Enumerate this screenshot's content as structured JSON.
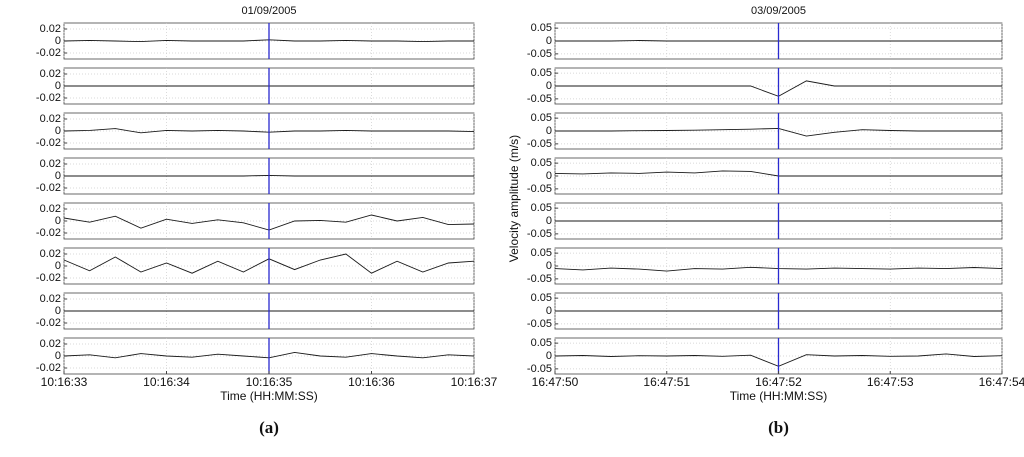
{
  "chart_data": [
    {
      "type": "line",
      "title": "01/09/2005",
      "xlabel": "Time (HH:MM:SS)",
      "panel_label": "(a)",
      "xlim": [
        0,
        4
      ],
      "xticks": [
        {
          "value": 0,
          "label": "10:16:33"
        },
        {
          "value": 1,
          "label": "10:16:34"
        },
        {
          "value": 2,
          "label": "10:16:35"
        },
        {
          "value": 3,
          "label": "10:16:36"
        },
        {
          "value": 4,
          "label": "10:16:37"
        }
      ],
      "x": [
        0,
        0.25,
        0.5,
        0.75,
        1,
        1.25,
        1.5,
        1.75,
        2,
        2.25,
        2.5,
        2.75,
        3,
        3.25,
        3.5,
        3.75,
        4
      ],
      "ylim": [
        -0.03,
        0.03
      ],
      "yticks": [
        -0.02,
        0,
        0.02
      ],
      "color": "#1a1a1a",
      "marker": 2,
      "marker_color": "#2a2ad0",
      "grid": true,
      "subplots": [
        {
          "values": [
            0,
            0.001,
            0,
            -0.001,
            0.001,
            0,
            0,
            0,
            0.002,
            0,
            0,
            0.001,
            0,
            0,
            -0.001,
            0,
            0
          ]
        },
        {
          "values": [
            0,
            0,
            0,
            0,
            0,
            0,
            0,
            0,
            0,
            0,
            0,
            0,
            0,
            0,
            0,
            0,
            0
          ]
        },
        {
          "values": [
            0,
            0.001,
            0.004,
            -0.003,
            0.001,
            0,
            0.001,
            0,
            -0.002,
            0,
            0,
            0.001,
            0,
            0,
            0,
            0,
            -0.001
          ]
        },
        {
          "values": [
            0,
            0,
            0,
            0,
            0,
            0,
            0,
            0,
            0.001,
            0,
            0,
            0,
            0,
            0,
            0,
            0,
            0
          ]
        },
        {
          "values": [
            0.005,
            -0.002,
            0.008,
            -0.012,
            0.003,
            -0.004,
            0.002,
            -0.003,
            -0.015,
            0,
            0.001,
            -0.002,
            0.01,
            0,
            0.006,
            -0.006,
            -0.005
          ]
        },
        {
          "values": [
            0.01,
            -0.008,
            0.015,
            -0.01,
            0.005,
            -0.012,
            0.008,
            -0.01,
            0.012,
            -0.006,
            0.01,
            0.02,
            -0.012,
            0.008,
            -0.01,
            0.005,
            0.008
          ]
        },
        {
          "values": [
            0,
            0,
            0,
            0,
            0,
            0,
            0,
            0,
            0,
            0,
            0,
            0,
            0,
            0,
            0,
            0,
            0
          ]
        },
        {
          "values": [
            0,
            0.002,
            -0.003,
            0.004,
            0,
            -0.002,
            0.003,
            0,
            -0.003,
            0.006,
            0,
            -0.002,
            0.004,
            0,
            -0.003,
            0.002,
            0
          ]
        }
      ]
    },
    {
      "type": "line",
      "title": "03/09/2005",
      "xlabel": "Time (HH:MM:SS)",
      "ylabel": "Velocity amplitude (m/s)",
      "panel_label": "(b)",
      "xlim": [
        0,
        4
      ],
      "xticks": [
        {
          "value": 0,
          "label": "16:47:50"
        },
        {
          "value": 1,
          "label": "16:47:51"
        },
        {
          "value": 2,
          "label": "16:47:52"
        },
        {
          "value": 3,
          "label": "16:47:53"
        },
        {
          "value": 4,
          "label": "16:47:54"
        }
      ],
      "x": [
        0,
        0.25,
        0.5,
        0.75,
        1,
        1.25,
        1.5,
        1.75,
        2,
        2.25,
        2.5,
        2.75,
        3,
        3.25,
        3.5,
        3.75,
        4
      ],
      "ylim": [
        -0.07,
        0.07
      ],
      "yticks": [
        -0.05,
        0,
        0.05
      ],
      "color": "#1a1a1a",
      "marker": 2,
      "marker_color": "#2a2ad0",
      "grid": true,
      "subplots": [
        {
          "values": [
            0,
            0,
            0,
            0.002,
            0,
            0,
            0,
            0,
            0,
            0,
            0,
            0,
            0,
            0,
            0,
            0,
            0
          ]
        },
        {
          "values": [
            0,
            0,
            0,
            0,
            0,
            0,
            0,
            0,
            -0.04,
            0.02,
            0,
            0,
            0,
            0,
            0,
            0,
            0
          ]
        },
        {
          "values": [
            0,
            0,
            0,
            0.001,
            0.002,
            0.003,
            0.005,
            0.007,
            0.01,
            -0.02,
            -0.005,
            0.005,
            0.002,
            0,
            0,
            0,
            0
          ]
        },
        {
          "values": [
            0.01,
            0.008,
            0.012,
            0.01,
            0.015,
            0.012,
            0.02,
            0.018,
            0,
            0,
            0,
            0,
            0,
            0,
            0,
            0,
            0
          ]
        },
        {
          "values": [
            0,
            0,
            0,
            0,
            0,
            0,
            0,
            0,
            0,
            0,
            0,
            0,
            0,
            0,
            0,
            0,
            0
          ]
        },
        {
          "values": [
            -0.01,
            -0.015,
            -0.008,
            -0.012,
            -0.02,
            -0.01,
            -0.012,
            -0.005,
            -0.01,
            -0.012,
            -0.008,
            -0.01,
            -0.012,
            -0.008,
            -0.01,
            -0.006,
            -0.01
          ]
        },
        {
          "values": [
            0,
            0,
            0,
            0,
            0,
            0,
            0,
            0,
            0,
            0,
            0,
            0,
            0,
            0,
            0,
            0,
            0
          ]
        },
        {
          "values": [
            0,
            0.002,
            -0.002,
            0.001,
            0,
            0.002,
            -0.001,
            0.003,
            -0.04,
            0.005,
            0,
            0.002,
            -0.001,
            0,
            0.008,
            -0.002,
            0.001
          ]
        }
      ]
    }
  ]
}
